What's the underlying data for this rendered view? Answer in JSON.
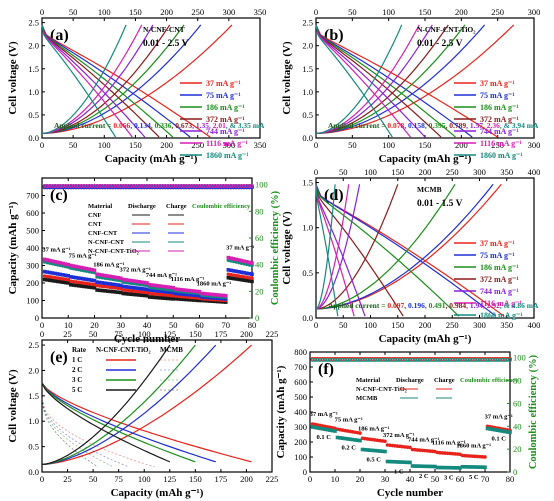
{
  "chart_data": [
    {
      "panel": "(a)",
      "type": "line",
      "xlabel": "Capacity (mAh g⁻¹)",
      "ylabel": "Cell voltage (V)",
      "xlim": [
        0,
        350
      ],
      "ylim": [
        0,
        2.6
      ],
      "xticks": [
        0,
        50,
        100,
        150,
        200,
        250,
        300,
        350
      ],
      "yticks": [
        0.0,
        0.5,
        1.0,
        1.5,
        2.0,
        2.5
      ],
      "annotations": [
        "N-CNF-CNT",
        "0.01 - 2.5 V"
      ],
      "applied_current_prefix": "Applied current = ",
      "applied_current_values": [
        "0.066",
        "0.134",
        "0.336",
        "0.673",
        "1.35",
        "2.01",
        "& 3.35 mA"
      ],
      "legend_position": "right",
      "series": [
        {
          "name": "37 mA g⁻¹",
          "color": "#e8231c",
          "discharge_max": 270,
          "charge_max": 305
        },
        {
          "name": "75 mA g⁻¹",
          "color": "#1f2fd6",
          "discharge_max": 238,
          "charge_max": 255
        },
        {
          "name": "186 mA g⁻¹",
          "color": "#1a8f1a",
          "discharge_max": 210,
          "charge_max": 228
        },
        {
          "name": "372 mA g⁻¹",
          "color": "#8b1a1a",
          "discharge_max": 188,
          "charge_max": 205
        },
        {
          "name": "744 mA g⁻¹",
          "color": "#8d1fd6",
          "discharge_max": 165,
          "charge_max": 178
        },
        {
          "name": "1116 mA g⁻¹",
          "color": "#d61fb3",
          "discharge_max": 145,
          "charge_max": 160
        },
        {
          "name": "1860 mA g⁻¹",
          "color": "#138a7e",
          "discharge_max": 118,
          "charge_max": 135
        }
      ]
    },
    {
      "panel": "(b)",
      "type": "line",
      "xlabel": "Capacity (mAh g⁻¹)",
      "ylabel": "Cell voltage (V)",
      "xlim": [
        0,
        300
      ],
      "ylim": [
        0,
        2.6
      ],
      "xticks": [
        0,
        50,
        100,
        150,
        200,
        250,
        300
      ],
      "yticks": [
        0.0,
        0.5,
        1.0,
        1.5,
        2.0,
        2.5
      ],
      "annotations": [
        "N-CNF-CNT-TiO₂",
        "0.01 - 2.5 V"
      ],
      "applied_current_prefix": "Applied current = ",
      "applied_current_values": [
        "0.078",
        "0.158",
        "0.395",
        "0.789",
        "1.57",
        "2.36",
        "& 3.94 mA"
      ],
      "legend_position": "right",
      "series": [
        {
          "name": "37 mA g⁻¹",
          "color": "#e8231c",
          "discharge_max": 250,
          "charge_max": 272
        },
        {
          "name": "75 mA g⁻¹",
          "color": "#1f2fd6",
          "discharge_max": 215,
          "charge_max": 232
        },
        {
          "name": "186 mA g⁻¹",
          "color": "#1a8f1a",
          "discharge_max": 192,
          "charge_max": 205
        },
        {
          "name": "372 mA g⁻¹",
          "color": "#8b1a1a",
          "discharge_max": 172,
          "charge_max": 182
        },
        {
          "name": "744 mA g⁻¹",
          "color": "#8d1fd6",
          "discharge_max": 150,
          "charge_max": 160
        },
        {
          "name": "1116 mA g⁻¹",
          "color": "#d61fb3",
          "discharge_max": 130,
          "charge_max": 142
        },
        {
          "name": "1860 mA g⁻¹",
          "color": "#138a7e",
          "discharge_max": 105,
          "charge_max": 118
        }
      ]
    },
    {
      "panel": "(c)",
      "type": "scatter",
      "xlabel": "Cycle number",
      "ylabel": "Capacity (mAh g⁻¹)",
      "y2label": "Coulombic efficiency (%)",
      "xlim": [
        0,
        80
      ],
      "ylim": [
        0,
        800
      ],
      "y2lim": [
        0,
        105
      ],
      "xticks": [
        0,
        10,
        20,
        30,
        40,
        50,
        60,
        70,
        80
      ],
      "yticks": [
        0,
        100,
        200,
        300,
        400,
        500,
        600,
        700
      ],
      "y2ticks": [
        0,
        20,
        40,
        60,
        80,
        100
      ],
      "legend_headers": [
        "Material",
        "Discharge",
        "Charge",
        "Coulombic efficiency"
      ],
      "rate_labels": [
        "37 mA g⁻¹",
        "75 mA g⁻¹",
        "186 mA g⁻¹",
        "372 mA g⁻¹",
        "744 mA g⁻¹",
        "1116 mA g⁻¹",
        "1860 mA g⁻¹",
        "37 mA g⁻¹"
      ],
      "segment_ranges": [
        [
          1,
          10
        ],
        [
          11,
          20
        ],
        [
          21,
          30
        ],
        [
          31,
          40
        ],
        [
          41,
          50
        ],
        [
          51,
          60
        ],
        [
          61,
          70
        ],
        [
          71,
          80
        ]
      ],
      "series": [
        {
          "name": "CNF",
          "color": "#1a1a1a",
          "capacity": [
            220,
            190,
            160,
            140,
            120,
            110,
            100,
            230
          ],
          "efficiency": 99
        },
        {
          "name": "CNT",
          "color": "#e8231c",
          "capacity": [
            240,
            210,
            185,
            160,
            140,
            125,
            110,
            250
          ],
          "efficiency": 98
        },
        {
          "name": "CNF-CNT",
          "color": "#1f2fd6",
          "capacity": [
            265,
            235,
            205,
            180,
            160,
            140,
            120,
            275
          ],
          "efficiency": 98
        },
        {
          "name": "N-CNF-CNT",
          "color": "#138a7e",
          "capacity": [
            320,
            285,
            235,
            205,
            175,
            155,
            130,
            330
          ],
          "efficiency": 99
        },
        {
          "name": "N-CNF-CNT-TiO₂",
          "color": "#d61fb3",
          "capacity": [
            335,
            300,
            250,
            220,
            190,
            165,
            140,
            345
          ],
          "efficiency": 99
        }
      ]
    },
    {
      "panel": "(d)",
      "type": "line",
      "xlabel": "Capacity (mAh g⁻¹)",
      "ylabel": "Cell voltage (V)",
      "xlim": [
        0,
        400
      ],
      "ylim": [
        0,
        1.55
      ],
      "xticks": [
        0,
        50,
        100,
        150,
        200,
        250,
        300,
        350,
        400
      ],
      "yticks": [
        0.0,
        0.5,
        1.0,
        1.5
      ],
      "annotations": [
        "MCMB",
        "0.01 - 1.5 V"
      ],
      "applied_current_prefix": "Applied current = ",
      "applied_current_values": [
        "0.097",
        "0.196",
        "0.491",
        "0.984",
        "1.94",
        "2.92",
        "& 4.86 mA"
      ],
      "legend_position": "right",
      "series": [
        {
          "name": "37 mA g⁻¹",
          "color": "#e8231c",
          "discharge_max": 345,
          "charge_max": 340
        },
        {
          "name": "75 mA g⁻¹",
          "color": "#1f2fd6",
          "discharge_max": 330,
          "charge_max": 325
        },
        {
          "name": "186 mA g⁻¹",
          "color": "#1a8f1a",
          "discharge_max": 262,
          "charge_max": 255
        },
        {
          "name": "372 mA g⁻¹",
          "color": "#8b1a1a",
          "discharge_max": 160,
          "charge_max": 150
        },
        {
          "name": "744 mA g⁻¹",
          "color": "#8d1fd6",
          "discharge_max": 90,
          "charge_max": 80
        },
        {
          "name": "1116 mA g⁻¹",
          "color": "#d61fb3",
          "discharge_max": 70,
          "charge_max": 60
        },
        {
          "name": "1860 mA g⁻¹",
          "color": "#138a7e",
          "discharge_max": 40,
          "charge_max": 35
        }
      ]
    },
    {
      "panel": "(e)",
      "type": "line",
      "xlabel": "Capacity (mAh g⁻¹)",
      "ylabel": "Cell voltage (V)",
      "xlim": [
        0,
        225
      ],
      "ylim": [
        0,
        2.6
      ],
      "xticks": [
        0,
        25,
        50,
        75,
        100,
        125,
        150,
        175,
        200,
        225
      ],
      "yticks": [
        0.0,
        0.5,
        1.0,
        1.5,
        2.0,
        2.5
      ],
      "legend_headers": [
        "Rate",
        "N-CNF-CNT-TiO₂",
        "MCMB"
      ],
      "series": [
        {
          "name": "1 C",
          "color": "#e8231c",
          "capacity": 205
        },
        {
          "name": "2 C",
          "color": "#1f2fd6",
          "capacity": 170
        },
        {
          "name": "3 C",
          "color": "#1a8f1a",
          "capacity": 150
        },
        {
          "name": "5 C",
          "color": "#1a1a1a",
          "capacity": 125
        }
      ],
      "mcmb_series_capacity": [
        110,
        85,
        70,
        55
      ]
    },
    {
      "panel": "(f)",
      "type": "scatter",
      "xlabel": "Cycle number",
      "ylabel": "Capacity (mAh g⁻¹)",
      "y2label": "Coulombic efficiency (%)",
      "xlim": [
        0,
        80
      ],
      "ylim": [
        0,
        800
      ],
      "y2lim": [
        0,
        105
      ],
      "xticks": [
        0,
        10,
        20,
        30,
        40,
        50,
        60,
        70,
        80
      ],
      "yticks": [
        0,
        100,
        200,
        300,
        400,
        500,
        600,
        700,
        800
      ],
      "y2ticks": [
        0,
        20,
        40,
        60,
        80,
        100
      ],
      "legend_headers": [
        "Material",
        "Discharge",
        "Charge",
        "Coulombic efficiency"
      ],
      "rate_labels": [
        "37 mA g⁻¹",
        "75 mA g⁻¹",
        "186 mA g⁻¹",
        "372 mA g⁻¹",
        "744 mA g⁻¹",
        "1116 mA g⁻¹",
        "1860 mA g⁻¹",
        "37 mA g⁻¹"
      ],
      "c_rate_labels": [
        "0.1 C",
        "0.2 C",
        "0.5 C",
        "1 C",
        "2 C",
        "3 C",
        "5 C",
        "0.1 C"
      ],
      "segment_ranges": [
        [
          1,
          10
        ],
        [
          11,
          20
        ],
        [
          21,
          30
        ],
        [
          31,
          40
        ],
        [
          41,
          50
        ],
        [
          51,
          60
        ],
        [
          61,
          70
        ],
        [
          71,
          80
        ]
      ],
      "series": [
        {
          "name": "N-CNF-CNT-TiO₂",
          "color": "#e8231c",
          "capacity": [
            320,
            285,
            225,
            180,
            150,
            130,
            110,
            305
          ],
          "efficiency": 99
        },
        {
          "name": "MCMB",
          "color": "#138a7e",
          "capacity": [
            300,
            230,
            150,
            70,
            40,
            30,
            35,
            290
          ],
          "efficiency": 98
        }
      ]
    }
  ]
}
